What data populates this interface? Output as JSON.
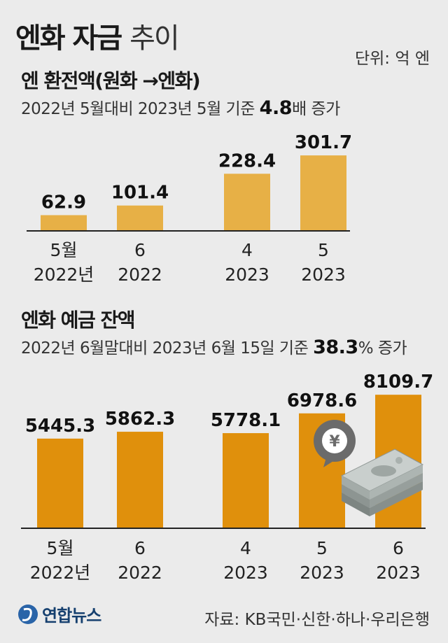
{
  "header": {
    "title_bold": "엔화 자금",
    "title_light": "추이",
    "unit": "단위: 억 엔"
  },
  "section1": {
    "heading": "엔 환전액(원화 →엔화)",
    "subtitle_pre": "2022년 5월대비 2023년 5월 기준 ",
    "subtitle_bold": "4.8",
    "subtitle_post": "배 증가"
  },
  "section2": {
    "heading": "엔화 예금 잔액",
    "subtitle_pre": "2022년 6월말대비 2023년 6월 15일 기준 ",
    "subtitle_bold": "38.3",
    "subtitle_post": "% 증가"
  },
  "badge": {
    "symbol": "¥"
  },
  "footer": {
    "logo_text": "연합뉴스",
    "source": "자료: KB국민·신한·하나·우리은행"
  },
  "colors": {
    "chart1_bar": "#e7b046",
    "chart2_bar": "#e0900c",
    "background": "#ebebeb",
    "badge": "#6b6b6b"
  },
  "chart_data": [
    {
      "type": "bar",
      "title": "엔 환전액(원화 →엔화)",
      "categories": [
        "5월 2022년",
        "6 2022",
        "4 2023",
        "5 2023"
      ],
      "category_lines": [
        [
          "5월",
          "2022년"
        ],
        [
          "6",
          "2022"
        ],
        [
          "4",
          "2023"
        ],
        [
          "5",
          "2023"
        ]
      ],
      "values": [
        62.9,
        101.4,
        228.4,
        301.7
      ],
      "value_labels": [
        "62.9",
        "101.4",
        "228.4",
        "301.7"
      ],
      "unit": "억 엔",
      "ylim": [
        0,
        330
      ],
      "grid": false
    },
    {
      "type": "bar",
      "title": "엔화 예금 잔액",
      "categories": [
        "5월 2022년",
        "6 2022",
        "4 2023",
        "5 2023",
        "6 2023"
      ],
      "category_lines": [
        [
          "5월",
          "2022년"
        ],
        [
          "6",
          "2022"
        ],
        [
          "4",
          "2023"
        ],
        [
          "5",
          "2023"
        ],
        [
          "6",
          "2023"
        ]
      ],
      "values": [
        5445.3,
        5862.3,
        5778.1,
        6978.6,
        8109.7
      ],
      "value_labels": [
        "5445.3",
        "5862.3",
        "5778.1",
        "6978.6",
        "8109.7"
      ],
      "unit": "억 엔",
      "ylim": [
        0,
        8500
      ],
      "grid": false
    }
  ]
}
